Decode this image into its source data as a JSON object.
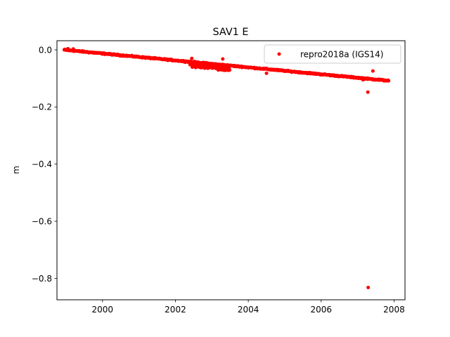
{
  "chart_data": {
    "type": "scatter",
    "title": "SAV1 E",
    "xlabel": "",
    "ylabel": "m",
    "xlim": [
      1998.75,
      2008.3
    ],
    "ylim": [
      -0.875,
      0.032
    ],
    "xticks": [
      2000,
      2002,
      2004,
      2006,
      2008
    ],
    "xtick_labels": [
      "2000",
      "2002",
      "2004",
      "2006",
      "2008"
    ],
    "yticks": [
      0.0,
      -0.2,
      -0.4,
      -0.6,
      -0.8
    ],
    "ytick_labels": [
      "0.0",
      "−0.2",
      "−0.4",
      "−0.6",
      "−0.8"
    ],
    "grid": false,
    "legend_position": "top-right",
    "series": [
      {
        "name": "repro2018a (IGS14)",
        "color": "#ff0000",
        "marker": "circle",
        "trend": {
          "x_start": 1998.95,
          "x_end": 2007.85,
          "y_start": 0.0,
          "y_end": -0.108,
          "noise": 0.003,
          "n": 700
        },
        "cluster": {
          "x_start": 2002.4,
          "x_end": 2003.5,
          "center_offset": -0.012,
          "spread": 0.012,
          "n": 140
        },
        "points": [
          {
            "x": 1999.05,
            "y": 0.004
          },
          {
            "x": 1999.2,
            "y": 0.003
          },
          {
            "x": 2002.45,
            "y": -0.03
          },
          {
            "x": 2003.3,
            "y": -0.032
          },
          {
            "x": 2004.5,
            "y": -0.082
          },
          {
            "x": 2006.45,
            "y": -0.09
          },
          {
            "x": 2007.15,
            "y": -0.105
          },
          {
            "x": 2007.28,
            "y": -0.148
          },
          {
            "x": 2007.42,
            "y": -0.074
          },
          {
            "x": 2007.29,
            "y": -0.832
          }
        ]
      }
    ]
  }
}
